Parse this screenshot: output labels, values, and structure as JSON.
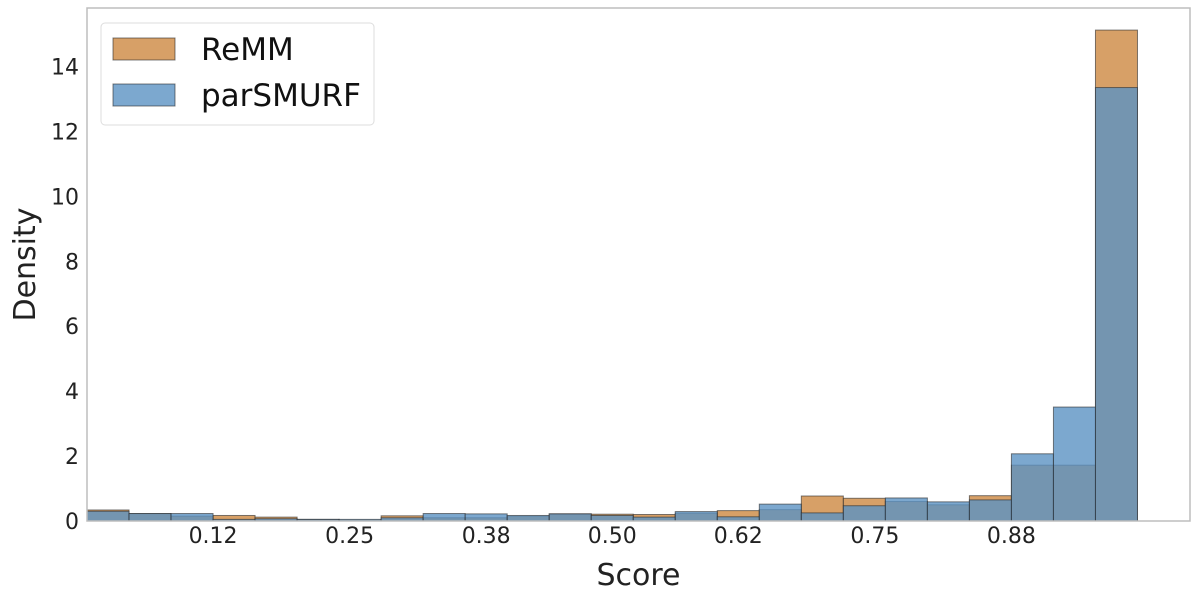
{
  "chart_data": {
    "type": "histogram",
    "xlabel": "Score",
    "ylabel": "Density",
    "xlim": [
      0,
      1.05
    ],
    "ylim": [
      0,
      15.8
    ],
    "xticks": [
      0.12,
      0.25,
      0.38,
      0.5,
      0.62,
      0.75,
      0.88
    ],
    "xtick_labels": [
      "0.12",
      "0.25",
      "0.38",
      "0.50",
      "0.62",
      "0.75",
      "0.88"
    ],
    "yticks": [
      0,
      2,
      4,
      6,
      8,
      10,
      12,
      14
    ],
    "ytick_labels": [
      "0",
      "2",
      "4",
      "6",
      "8",
      "10",
      "12",
      "14"
    ],
    "legend_position": "top-left",
    "grid": false,
    "bin_edges": [
      0,
      0.04,
      0.08,
      0.12,
      0.16,
      0.2,
      0.24,
      0.28,
      0.32,
      0.36,
      0.4,
      0.44,
      0.48,
      0.52,
      0.56,
      0.6,
      0.64,
      0.68,
      0.72,
      0.76,
      0.8,
      0.84,
      0.88,
      0.92,
      0.96,
      1.0
    ],
    "series": [
      {
        "name": "ReMM",
        "color": "#d08f4c",
        "values": [
          0.34,
          0.23,
          0.15,
          0.17,
          0.12,
          0.05,
          0.03,
          0.16,
          0.1,
          0.1,
          0.15,
          0.22,
          0.21,
          0.2,
          0.24,
          0.32,
          0.35,
          0.77,
          0.7,
          0.6,
          0.5,
          0.78,
          1.72,
          1.72,
          15.12
        ]
      },
      {
        "name": "parSMURF",
        "color": "#5b92c3",
        "values": [
          0.3,
          0.23,
          0.23,
          0.05,
          0.07,
          0.05,
          0.05,
          0.1,
          0.23,
          0.22,
          0.17,
          0.22,
          0.17,
          0.12,
          0.29,
          0.13,
          0.52,
          0.25,
          0.47,
          0.71,
          0.59,
          0.65,
          2.07,
          3.51,
          13.35
        ]
      }
    ]
  }
}
